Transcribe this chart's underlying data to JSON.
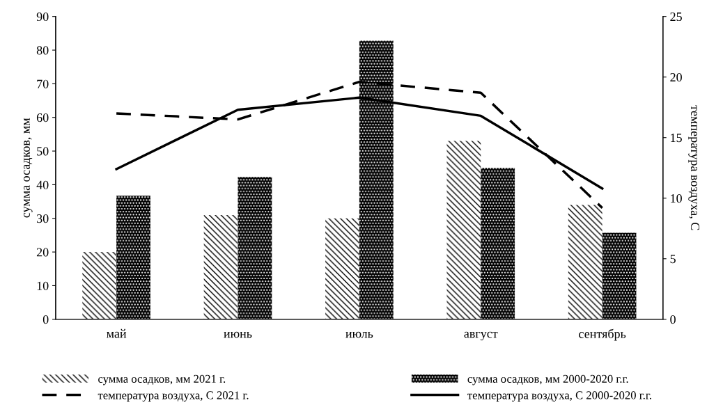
{
  "chart_data": {
    "type": "bar",
    "ylabel": "сумма осадков, мм",
    "y2label": "температура воздуха, С",
    "categories": [
      "май",
      "июнь",
      "июль",
      "август",
      "сентябрь"
    ],
    "series": [
      {
        "name": "сумма осадков, мм 2021 г.",
        "color": "#000000",
        "values": [
          20,
          31,
          30,
          53,
          34
        ]
      },
      {
        "name": "сумма осадков, мм 2000-2020 г.г.",
        "color": "#000000",
        "values": [
          36.7,
          42.3,
          82.8,
          45,
          25.7
        ]
      },
      {
        "name": "температура воздуха, С 2021 г.",
        "type": "line",
        "axis": "y2",
        "line_style": "dashed",
        "color": "#000000",
        "values": [
          17.0,
          16.5,
          19.6,
          18.7,
          9.2
        ]
      },
      {
        "name": "температура воздуха, С 2000-2020 г.г.",
        "type": "line",
        "axis": "y2",
        "line_style": "solid",
        "color": "#000000",
        "values": [
          12.4,
          17.3,
          18.3,
          16.8,
          10.8
        ]
      }
    ],
    "ylim": [
      0,
      90
    ],
    "yticks": [
      0,
      10,
      20,
      30,
      40,
      50,
      60,
      70,
      80,
      90
    ],
    "y2lim": [
      0,
      25
    ],
    "y2ticks": [
      0,
      5,
      10,
      15,
      20,
      25
    ],
    "grid": false,
    "legend": "bottom",
    "marker": "none"
  }
}
